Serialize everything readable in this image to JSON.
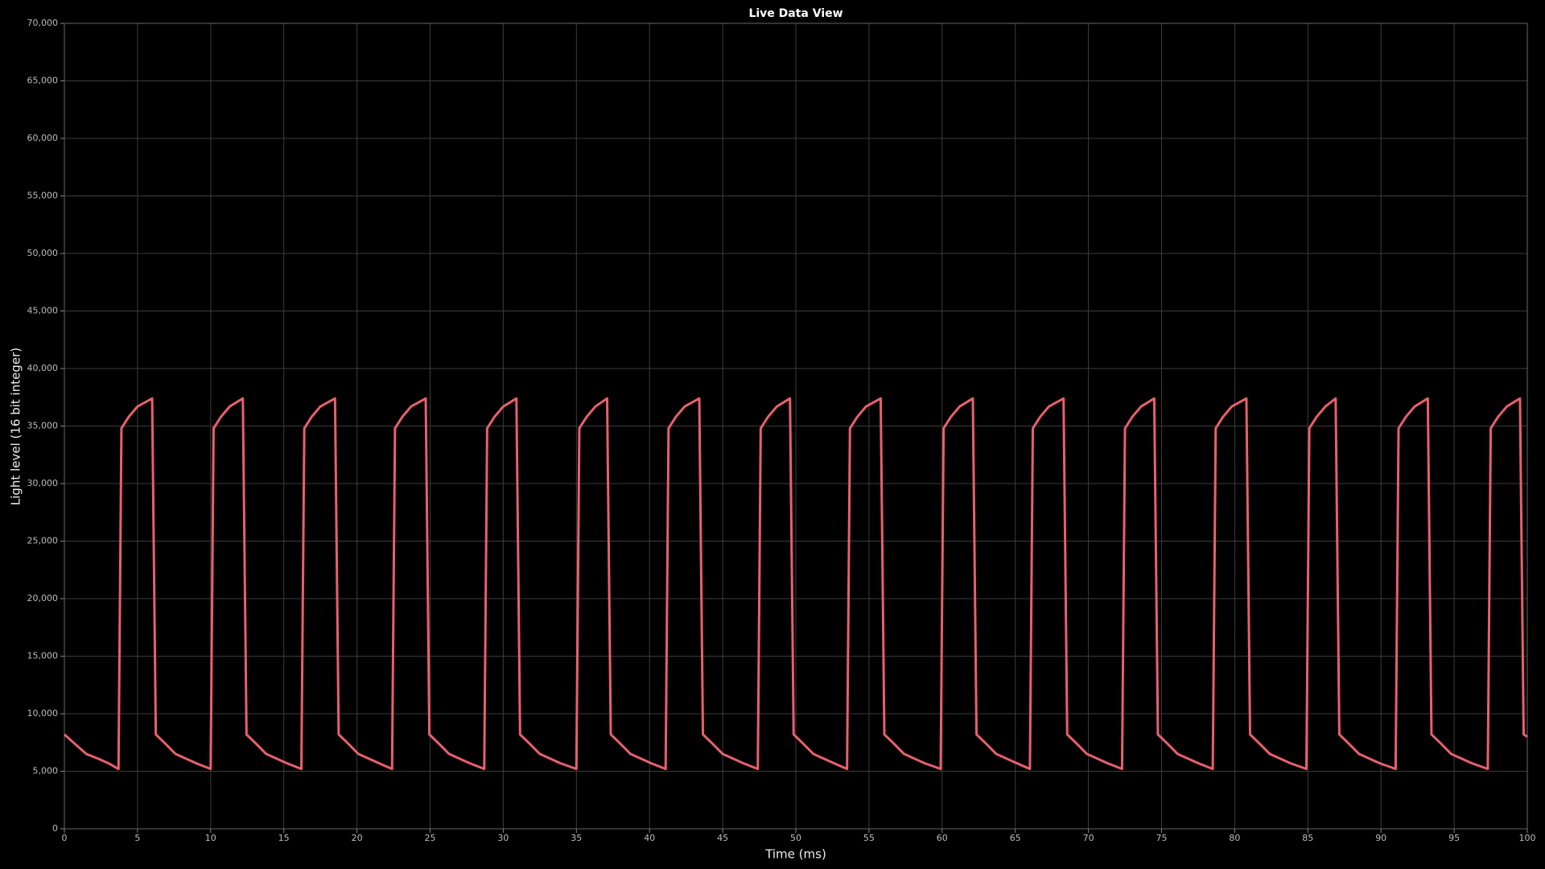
{
  "chart_data": {
    "type": "line",
    "title": "Live Data View",
    "x_label": "Time (ms)",
    "y_label": "Light level (16 bit integer)",
    "color": "#e8606e",
    "grid": true,
    "xlim": [
      0,
      100
    ],
    "xticks": [
      0,
      5,
      10,
      15,
      20,
      25,
      30,
      35,
      40,
      45,
      50,
      55,
      60,
      65,
      70,
      75,
      80,
      85,
      90,
      95,
      100
    ],
    "ylim": [
      0,
      70000
    ],
    "yticks": [
      0,
      {
        "value": 5000,
        "label": "5,000"
      },
      {
        "value": 10000,
        "label": "10,000"
      },
      {
        "value": 15000,
        "label": "15,000"
      },
      {
        "value": 20000,
        "label": "20,000"
      },
      {
        "value": 25000,
        "label": "25,000"
      },
      {
        "value": 30000,
        "label": "30,000"
      },
      {
        "value": 35000,
        "label": "35,000"
      },
      {
        "value": 40000,
        "label": "40,000"
      },
      {
        "value": 45000,
        "label": "45,000"
      },
      {
        "value": 50000,
        "label": "50,000"
      },
      {
        "value": 55000,
        "label": "55,000"
      },
      {
        "value": 60000,
        "label": "60,000"
      },
      {
        "value": 65000,
        "label": "65,000"
      },
      {
        "value": 70000,
        "label": "70,000"
      }
    ],
    "x": [
      0,
      0.7,
      1.5,
      2.3,
      3.0,
      3.7,
      3.9,
      4.4,
      5.0,
      6.0,
      6.25,
      6.9,
      7.6,
      8.3,
      9.0,
      10.0,
      10.2,
      10.7,
      11.3,
      12.2,
      12.45,
      13.1,
      13.8,
      14.5,
      15.2,
      16.2,
      16.4,
      16.9,
      17.5,
      18.5,
      18.75,
      19.4,
      20.1,
      20.8,
      21.5,
      22.4,
      22.6,
      23.1,
      23.7,
      24.7,
      24.95,
      25.6,
      26.3,
      27.0,
      27.7,
      28.7,
      28.9,
      29.4,
      30.0,
      30.9,
      31.15,
      31.8,
      32.5,
      33.2,
      33.9,
      35.0,
      35.2,
      35.7,
      36.3,
      37.1,
      37.35,
      38.0,
      38.7,
      39.4,
      40.1,
      41.1,
      41.3,
      41.8,
      42.4,
      43.4,
      43.65,
      44.3,
      45.0,
      45.7,
      46.4,
      47.4,
      47.6,
      48.1,
      48.7,
      49.6,
      49.85,
      50.5,
      51.2,
      51.9,
      52.6,
      53.5,
      53.7,
      54.2,
      54.8,
      55.8,
      56.05,
      56.7,
      57.4,
      58.1,
      58.8,
      59.9,
      60.1,
      60.6,
      61.2,
      62.1,
      62.35,
      63.0,
      63.7,
      64.4,
      65.1,
      66.0,
      66.2,
      66.7,
      67.3,
      68.3,
      68.55,
      69.2,
      69.9,
      70.6,
      71.3,
      72.3,
      72.5,
      73.0,
      73.6,
      74.5,
      74.75,
      75.4,
      76.1,
      76.8,
      77.5,
      78.5,
      78.7,
      79.2,
      79.8,
      80.8,
      81.05,
      81.7,
      82.4,
      83.1,
      83.8,
      84.9,
      85.1,
      85.6,
      86.2,
      86.9,
      87.15,
      87.8,
      88.5,
      89.2,
      89.9,
      91.0,
      91.2,
      91.7,
      92.3,
      93.2,
      93.45,
      94.1,
      94.8,
      95.5,
      96.2,
      97.3,
      97.5,
      98.0,
      98.6,
      99.5,
      99.75,
      100
    ],
    "values": [
      8200,
      7400,
      6500,
      6100,
      5700,
      5200,
      34800,
      35800,
      36700,
      37400,
      8200,
      7400,
      6500,
      6100,
      5700,
      5200,
      34800,
      35800,
      36700,
      37400,
      8200,
      7400,
      6500,
      6100,
      5700,
      5200,
      34800,
      35800,
      36700,
      37400,
      8200,
      7400,
      6500,
      6100,
      5700,
      5200,
      34800,
      35800,
      36700,
      37400,
      8200,
      7400,
      6500,
      6100,
      5700,
      5200,
      34800,
      35800,
      36700,
      37400,
      8200,
      7400,
      6500,
      6100,
      5700,
      5200,
      34800,
      35800,
      36700,
      37400,
      8200,
      7400,
      6500,
      6100,
      5700,
      5200,
      34800,
      35800,
      36700,
      37400,
      8200,
      7400,
      6500,
      6100,
      5700,
      5200,
      34800,
      35800,
      36700,
      37400,
      8200,
      7400,
      6500,
      6100,
      5700,
      5200,
      34800,
      35800,
      36700,
      37400,
      8200,
      7400,
      6500,
      6100,
      5700,
      5200,
      34800,
      35800,
      36700,
      37400,
      8200,
      7400,
      6500,
      6100,
      5700,
      5200,
      34800,
      35800,
      36700,
      37400,
      8200,
      7400,
      6500,
      6100,
      5700,
      5200,
      34800,
      35800,
      36700,
      37400,
      8200,
      7400,
      6500,
      6100,
      5700,
      5200,
      34800,
      35800,
      36700,
      37400,
      8200,
      7400,
      6500,
      6100,
      5700,
      5200,
      34800,
      35800,
      36700,
      37400,
      8200,
      7400,
      6500,
      6100,
      5700,
      5200,
      34800,
      35800,
      36700,
      37400,
      8200,
      7400,
      6500,
      6100,
      5700,
      5200,
      34800,
      35800,
      36700,
      37400,
      8200,
      8000
    ]
  }
}
